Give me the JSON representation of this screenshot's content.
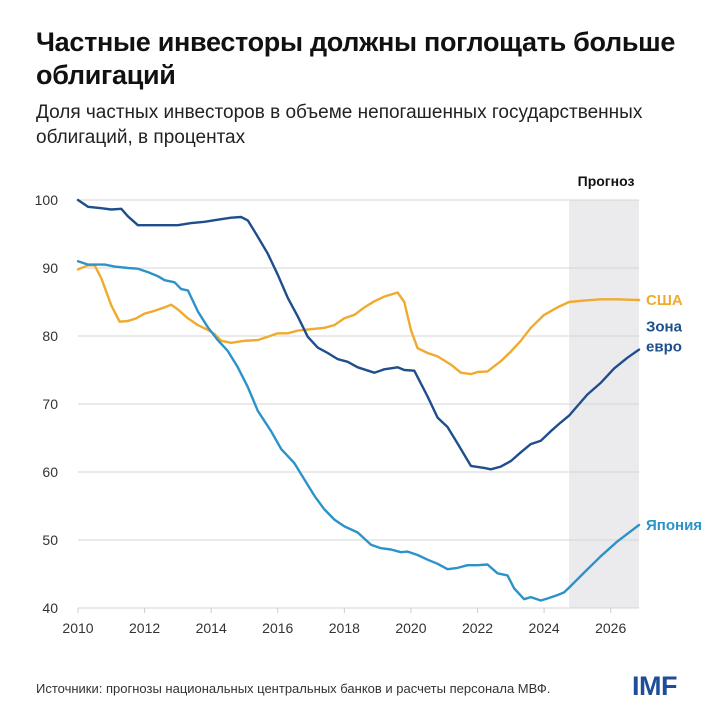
{
  "header": {
    "title": "Частные инвесторы должны поглощать больше облигаций",
    "subtitle": "Доля частных инвесторов в объеме непогашенных государственных облигаций, в процентах"
  },
  "footer": {
    "source": "Источники: прогнозы национальных центральных банков и расчеты персонала МВФ.",
    "logo": "IMF"
  },
  "chart_data": {
    "type": "line",
    "title": "Частные инвесторы должны поглощать больше облигаций",
    "subtitle": "Доля частных инвесторов в объеме непогашенных государственных облигаций, в процентах",
    "xlabel": "",
    "ylabel": "",
    "xlim": [
      2010,
      2026.85
    ],
    "ylim": [
      40,
      100
    ],
    "x_ticks": [
      2010,
      2012,
      2014,
      2016,
      2018,
      2020,
      2022,
      2024,
      2026
    ],
    "x_tick_labels": [
      "2010",
      "2012",
      "2014",
      "2016",
      "2018",
      "2020",
      "2022",
      "2024",
      "2026"
    ],
    "y_ticks": [
      40,
      50,
      60,
      70,
      80,
      90,
      100
    ],
    "y_tick_labels": [
      "40",
      "50",
      "60",
      "70",
      "80",
      "90",
      "100"
    ],
    "grid": true,
    "forecast": {
      "label": "Прогноз",
      "start": 2024.75,
      "end": 2026.85,
      "color": "#ebebee"
    },
    "series": [
      {
        "name": "США",
        "color": "#f0aa2e",
        "points": [
          [
            2010.0,
            89.8
          ],
          [
            2010.3,
            90.4
          ],
          [
            2010.5,
            90.4
          ],
          [
            2010.7,
            88.5
          ],
          [
            2011.0,
            84.5
          ],
          [
            2011.25,
            82.1
          ],
          [
            2011.5,
            82.2
          ],
          [
            2011.75,
            82.6
          ],
          [
            2012.0,
            83.3
          ],
          [
            2012.3,
            83.7
          ],
          [
            2012.6,
            84.2
          ],
          [
            2012.8,
            84.6
          ],
          [
            2013.0,
            83.9
          ],
          [
            2013.3,
            82.6
          ],
          [
            2013.6,
            81.6
          ],
          [
            2013.9,
            80.9
          ],
          [
            2014.1,
            80.3
          ],
          [
            2014.3,
            79.3
          ],
          [
            2014.6,
            79.0
          ],
          [
            2015.0,
            79.3
          ],
          [
            2015.4,
            79.4
          ],
          [
            2015.7,
            79.9
          ],
          [
            2016.0,
            80.4
          ],
          [
            2016.3,
            80.4
          ],
          [
            2016.6,
            80.8
          ],
          [
            2017.0,
            81.0
          ],
          [
            2017.4,
            81.2
          ],
          [
            2017.7,
            81.6
          ],
          [
            2018.0,
            82.6
          ],
          [
            2018.3,
            83.1
          ],
          [
            2018.6,
            84.2
          ],
          [
            2018.9,
            85.1
          ],
          [
            2019.2,
            85.8
          ],
          [
            2019.6,
            86.4
          ],
          [
            2019.8,
            85.0
          ],
          [
            2020.0,
            80.9
          ],
          [
            2020.2,
            78.2
          ],
          [
            2020.5,
            77.5
          ],
          [
            2020.8,
            77.0
          ],
          [
            2021.2,
            75.8
          ],
          [
            2021.5,
            74.6
          ],
          [
            2021.8,
            74.4
          ],
          [
            2022.0,
            74.7
          ],
          [
            2022.3,
            74.8
          ],
          [
            2022.7,
            76.3
          ],
          [
            2023.0,
            77.7
          ],
          [
            2023.3,
            79.3
          ],
          [
            2023.6,
            81.2
          ],
          [
            2024.0,
            83.1
          ],
          [
            2024.4,
            84.2
          ],
          [
            2024.75,
            85.0
          ],
          [
            2025.2,
            85.2
          ],
          [
            2025.7,
            85.4
          ],
          [
            2026.2,
            85.4
          ],
          [
            2026.85,
            85.3
          ]
        ]
      },
      {
        "name": "Зона евро",
        "color": "#1f4e8c",
        "points": [
          [
            2010.0,
            100.0
          ],
          [
            2010.3,
            99.0
          ],
          [
            2010.7,
            98.8
          ],
          [
            2011.0,
            98.6
          ],
          [
            2011.3,
            98.7
          ],
          [
            2011.5,
            97.6
          ],
          [
            2011.8,
            96.3
          ],
          [
            2012.2,
            96.3
          ],
          [
            2012.6,
            96.3
          ],
          [
            2013.0,
            96.3
          ],
          [
            2013.4,
            96.6
          ],
          [
            2013.8,
            96.8
          ],
          [
            2014.2,
            97.1
          ],
          [
            2014.6,
            97.4
          ],
          [
            2014.9,
            97.5
          ],
          [
            2015.1,
            97.0
          ],
          [
            2015.4,
            94.6
          ],
          [
            2015.7,
            92.1
          ],
          [
            2016.0,
            89.0
          ],
          [
            2016.3,
            85.6
          ],
          [
            2016.6,
            82.9
          ],
          [
            2016.9,
            79.9
          ],
          [
            2017.2,
            78.3
          ],
          [
            2017.5,
            77.5
          ],
          [
            2017.8,
            76.6
          ],
          [
            2018.1,
            76.2
          ],
          [
            2018.4,
            75.4
          ],
          [
            2018.9,
            74.6
          ],
          [
            2019.2,
            75.1
          ],
          [
            2019.6,
            75.4
          ],
          [
            2019.8,
            75.0
          ],
          [
            2020.1,
            74.9
          ],
          [
            2020.5,
            71.1
          ],
          [
            2020.8,
            68.0
          ],
          [
            2021.1,
            66.6
          ],
          [
            2021.4,
            64.2
          ],
          [
            2021.8,
            60.9
          ],
          [
            2022.2,
            60.6
          ],
          [
            2022.4,
            60.4
          ],
          [
            2022.7,
            60.8
          ],
          [
            2023.0,
            61.6
          ],
          [
            2023.3,
            62.9
          ],
          [
            2023.6,
            64.1
          ],
          [
            2023.9,
            64.6
          ],
          [
            2024.2,
            66.0
          ],
          [
            2024.5,
            67.3
          ],
          [
            2024.75,
            68.3
          ],
          [
            2025.0,
            69.7
          ],
          [
            2025.3,
            71.4
          ],
          [
            2025.7,
            73.1
          ],
          [
            2026.1,
            75.2
          ],
          [
            2026.5,
            76.8
          ],
          [
            2026.85,
            78.0
          ]
        ]
      },
      {
        "name": "Япония",
        "color": "#2b93c9",
        "points": [
          [
            2010.0,
            91.0
          ],
          [
            2010.3,
            90.5
          ],
          [
            2010.8,
            90.5
          ],
          [
            2011.1,
            90.2
          ],
          [
            2011.5,
            90.0
          ],
          [
            2011.8,
            89.9
          ],
          [
            2012.1,
            89.4
          ],
          [
            2012.4,
            88.8
          ],
          [
            2012.6,
            88.2
          ],
          [
            2012.9,
            87.9
          ],
          [
            2013.1,
            86.9
          ],
          [
            2013.3,
            86.7
          ],
          [
            2013.6,
            83.6
          ],
          [
            2013.9,
            81.3
          ],
          [
            2014.2,
            79.4
          ],
          [
            2014.5,
            77.8
          ],
          [
            2014.8,
            75.4
          ],
          [
            2015.1,
            72.5
          ],
          [
            2015.4,
            69.0
          ],
          [
            2015.8,
            66.0
          ],
          [
            2016.1,
            63.4
          ],
          [
            2016.5,
            61.3
          ],
          [
            2016.8,
            58.9
          ],
          [
            2017.1,
            56.5
          ],
          [
            2017.4,
            54.5
          ],
          [
            2017.7,
            53.0
          ],
          [
            2018.0,
            52.0
          ],
          [
            2018.4,
            51.1
          ],
          [
            2018.8,
            49.3
          ],
          [
            2019.1,
            48.8
          ],
          [
            2019.4,
            48.6
          ],
          [
            2019.7,
            48.2
          ],
          [
            2019.9,
            48.3
          ],
          [
            2020.2,
            47.8
          ],
          [
            2020.5,
            47.1
          ],
          [
            2020.8,
            46.5
          ],
          [
            2021.1,
            45.7
          ],
          [
            2021.4,
            45.9
          ],
          [
            2021.7,
            46.3
          ],
          [
            2022.0,
            46.3
          ],
          [
            2022.3,
            46.4
          ],
          [
            2022.6,
            45.1
          ],
          [
            2022.9,
            44.8
          ],
          [
            2023.1,
            42.9
          ],
          [
            2023.4,
            41.3
          ],
          [
            2023.6,
            41.6
          ],
          [
            2023.9,
            41.1
          ],
          [
            2024.1,
            41.4
          ],
          [
            2024.4,
            41.9
          ],
          [
            2024.6,
            42.3
          ],
          [
            2024.75,
            43.0
          ],
          [
            2025.2,
            45.2
          ],
          [
            2025.7,
            47.6
          ],
          [
            2026.2,
            49.8
          ],
          [
            2026.85,
            52.2
          ]
        ]
      }
    ],
    "series_labels": [
      {
        "series": "США",
        "lines": [
          "США"
        ]
      },
      {
        "series": "Зона евро",
        "lines": [
          "Зона",
          "евро"
        ]
      },
      {
        "series": "Япония",
        "lines": [
          "Япония"
        ]
      }
    ],
    "legend": "inline-right"
  }
}
